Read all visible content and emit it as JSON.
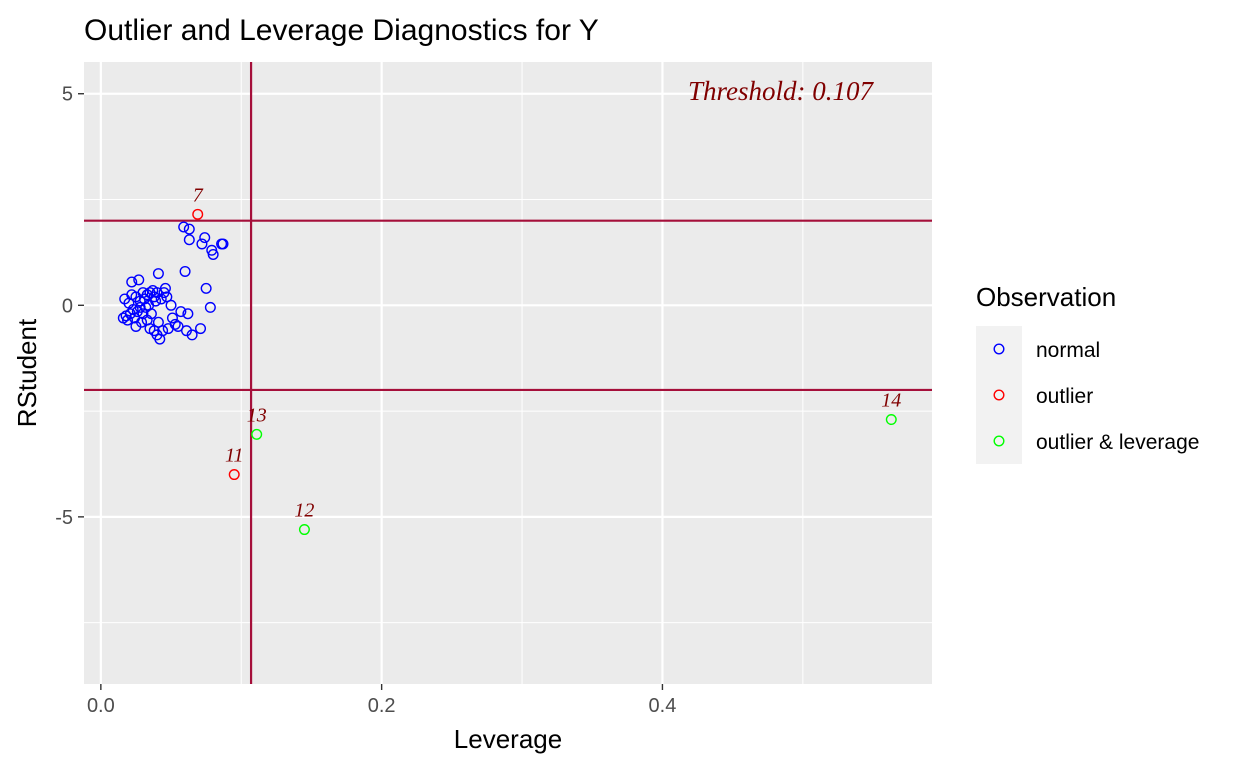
{
  "chart_data": {
    "type": "scatter",
    "title": "Outlier and Leverage Diagnostics for Y",
    "xlabel": "Leverage",
    "ylabel": "RStudent",
    "xlim": [
      -0.012,
      0.592
    ],
    "ylim": [
      -8.95,
      5.75
    ],
    "x_ticks": [
      0.0,
      0.2,
      0.4
    ],
    "x_tick_labels": [
      "0.0",
      "0.2",
      "0.4"
    ],
    "x_minor_ticks": [
      0.1,
      0.3,
      0.5
    ],
    "y_ticks": [
      5,
      0,
      -5
    ],
    "y_tick_labels": [
      "5",
      "0",
      "-5"
    ],
    "y_minor_ticks": [
      2.5,
      -2.5,
      -7.5
    ],
    "grid": true,
    "threshold_text": "Threshold: 0.107",
    "reference_lines": {
      "vertical_x": 0.107,
      "horizontal_y": [
        2,
        -2
      ],
      "color": "#A50F3A"
    },
    "legend": {
      "title": "Observation",
      "position": "right",
      "entries": [
        {
          "label": "normal",
          "color": "#0000FF"
        },
        {
          "label": "outlier",
          "color": "#FF0000"
        },
        {
          "label": "outlier & leverage",
          "color": "#00FF00"
        }
      ]
    },
    "series": [
      {
        "name": "normal",
        "color": "#0000FF",
        "points": [
          [
            0.016,
            -0.3
          ],
          [
            0.017,
            0.15
          ],
          [
            0.018,
            -0.25
          ],
          [
            0.019,
            -0.35
          ],
          [
            0.02,
            0.05
          ],
          [
            0.021,
            -0.2
          ],
          [
            0.022,
            0.25
          ],
          [
            0.022,
            0.55
          ],
          [
            0.023,
            -0.1
          ],
          [
            0.024,
            -0.3
          ],
          [
            0.025,
            -0.5
          ],
          [
            0.025,
            0.2
          ],
          [
            0.026,
            -0.15
          ],
          [
            0.027,
            0.6
          ],
          [
            0.028,
            -0.05
          ],
          [
            0.028,
            0.1
          ],
          [
            0.029,
            -0.4
          ],
          [
            0.03,
            0.3
          ],
          [
            0.03,
            -0.2
          ],
          [
            0.031,
            0.15
          ],
          [
            0.032,
            -0.05
          ],
          [
            0.033,
            0.25
          ],
          [
            0.033,
            -0.35
          ],
          [
            0.034,
            0.0
          ],
          [
            0.035,
            -0.55
          ],
          [
            0.035,
            0.3
          ],
          [
            0.036,
            -0.2
          ],
          [
            0.037,
            0.35
          ],
          [
            0.038,
            0.2
          ],
          [
            0.038,
            -0.6
          ],
          [
            0.039,
            0.1
          ],
          [
            0.04,
            -0.7
          ],
          [
            0.04,
            0.3
          ],
          [
            0.041,
            -0.4
          ],
          [
            0.041,
            0.75
          ],
          [
            0.042,
            -0.8
          ],
          [
            0.043,
            0.15
          ],
          [
            0.044,
            -0.6
          ],
          [
            0.045,
            0.3
          ],
          [
            0.046,
            0.4
          ],
          [
            0.047,
            0.2
          ],
          [
            0.048,
            -0.55
          ],
          [
            0.05,
            0.0
          ],
          [
            0.051,
            -0.3
          ],
          [
            0.053,
            -0.45
          ],
          [
            0.055,
            -0.5
          ],
          [
            0.057,
            -0.15
          ],
          [
            0.059,
            1.85
          ],
          [
            0.06,
            0.8
          ],
          [
            0.061,
            -0.6
          ],
          [
            0.062,
            -0.2
          ],
          [
            0.063,
            1.8
          ],
          [
            0.063,
            1.55
          ],
          [
            0.065,
            -0.7
          ],
          [
            0.071,
            -0.55
          ],
          [
            0.072,
            1.45
          ],
          [
            0.074,
            1.6
          ],
          [
            0.075,
            0.4
          ],
          [
            0.078,
            -0.05
          ],
          [
            0.079,
            1.3
          ],
          [
            0.08,
            1.2
          ],
          [
            0.086,
            1.45
          ],
          [
            0.087,
            1.45
          ]
        ]
      },
      {
        "name": "outlier",
        "color": "#FF0000",
        "points": [
          [
            0.069,
            2.15
          ],
          [
            0.095,
            -4.0
          ]
        ],
        "labels": [
          "7",
          "11"
        ]
      },
      {
        "name": "outlier & leverage",
        "color": "#00FF00",
        "points": [
          [
            0.111,
            -3.05
          ],
          [
            0.145,
            -5.3
          ],
          [
            0.563,
            -2.7
          ]
        ],
        "labels": [
          "13",
          "12",
          "14"
        ]
      }
    ]
  }
}
